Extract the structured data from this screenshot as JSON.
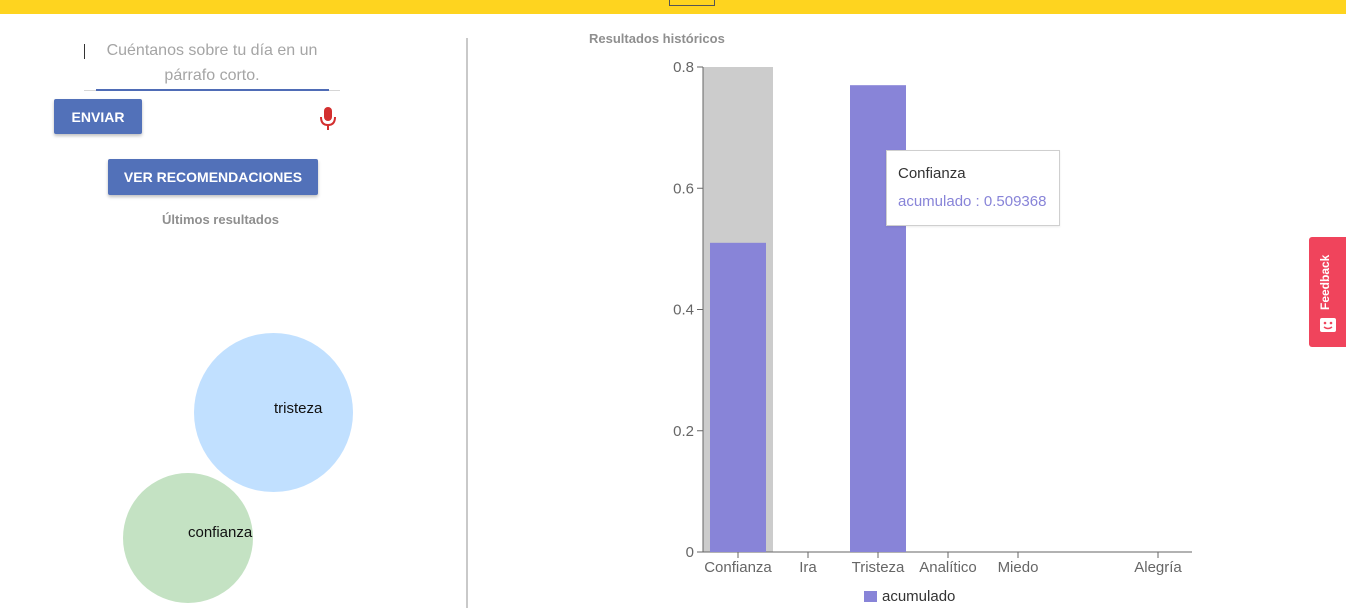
{
  "form": {
    "placeholder": "Cuéntanos sobre tu día en un párrafo corto.",
    "send_label": "ENVIAR",
    "recommend_label": "VER RECOMENDACIONES",
    "mic_icon": "microphone-icon",
    "mic_color": "#d32f2f"
  },
  "latest": {
    "title": "Últimos resultados",
    "bubbles": [
      {
        "label": "tristeza",
        "color": "#c1e0ff"
      },
      {
        "label": "confianza",
        "color": "#c4e2c3"
      }
    ]
  },
  "history": {
    "title": "Resultados históricos"
  },
  "chart_data": {
    "type": "bar",
    "categories": [
      "Confianza",
      "Ira",
      "Tristeza",
      "Analítico",
      "Miedo",
      "Alegría"
    ],
    "series": [
      {
        "name": "acumulado",
        "values": [
          0.51,
          0,
          0.77,
          0,
          0,
          0
        ],
        "color": "#8884d8"
      }
    ],
    "highlight": {
      "category": "Confianza",
      "cursor_color": "#cccccc"
    },
    "ylim": [
      0,
      0.8
    ],
    "yticks": [
      "0",
      "0.2",
      "0.4",
      "0.6",
      "0.8"
    ],
    "legend": "bottom"
  },
  "tooltip": {
    "title": "Confianza",
    "line": "acumulado : 0.509368"
  },
  "feedback": {
    "label": "Feedback",
    "color": "#f0445c",
    "icon": "smiley-icon"
  },
  "colors": {
    "topbar": "#fed41f",
    "accent": "#5271b9"
  }
}
